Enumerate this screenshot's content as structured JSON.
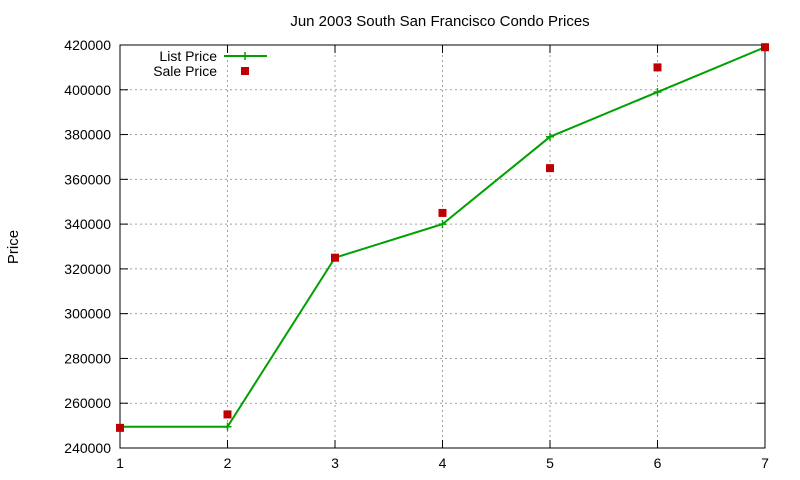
{
  "chart_data": {
    "type": "line",
    "title": "Jun 2003 South San Francisco Condo Prices",
    "xlabel": "",
    "ylabel": "Price",
    "x": [
      1,
      2,
      3,
      4,
      5,
      6,
      7
    ],
    "xlim": [
      1,
      7
    ],
    "ylim": [
      240000,
      420000
    ],
    "xticks": [
      1,
      2,
      3,
      4,
      5,
      6,
      7
    ],
    "yticks": [
      240000,
      260000,
      280000,
      300000,
      320000,
      340000,
      360000,
      380000,
      400000,
      420000
    ],
    "grid": true,
    "legend_position": "top-left",
    "series": [
      {
        "name": "List Price",
        "style": "line-with-plus-markers",
        "color": "#00a000",
        "values": [
          249500,
          249500,
          325000,
          340000,
          379000,
          399000,
          419000
        ]
      },
      {
        "name": "Sale Price",
        "style": "square-markers",
        "color": "#c00000",
        "values": [
          249000,
          255000,
          325000,
          345000,
          365000,
          410000,
          419000
        ]
      }
    ]
  }
}
